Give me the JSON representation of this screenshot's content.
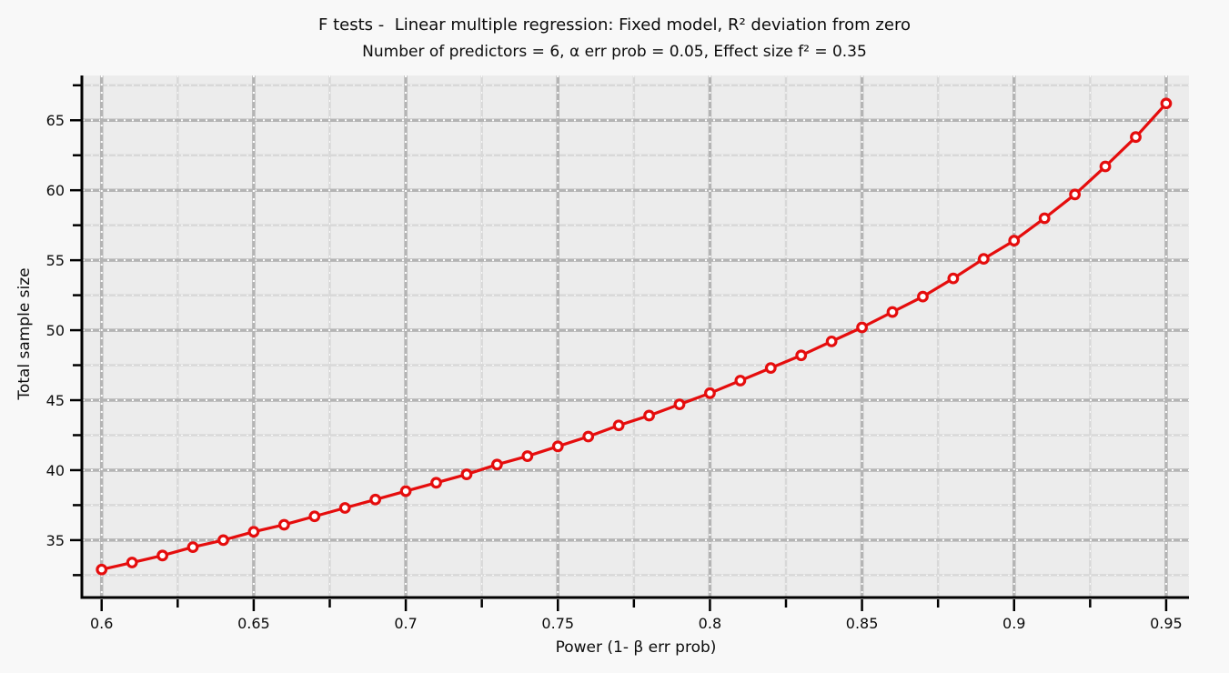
{
  "header": {
    "title": "F tests -  Linear multiple regression: Fixed model, R² deviation from zero",
    "subtitle": "Number of predictors = 6, α err prob = 0.05, Effect size f² = 0.35"
  },
  "chart_data": {
    "type": "line",
    "title": "F tests -  Linear multiple regression: Fixed model, R² deviation from zero",
    "subtitle": "Number of predictors = 6, α err prob = 0.05, Effect size f² = 0.35",
    "xlabel": "Power (1- β err prob)",
    "ylabel": "Total sample size",
    "x": [
      0.6,
      0.61,
      0.62,
      0.63,
      0.64,
      0.65,
      0.66,
      0.67,
      0.68,
      0.69,
      0.7,
      0.71,
      0.72,
      0.73,
      0.74,
      0.75,
      0.76,
      0.77,
      0.78,
      0.79,
      0.8,
      0.81,
      0.82,
      0.83,
      0.84,
      0.85,
      0.86,
      0.87,
      0.88,
      0.89,
      0.9,
      0.91,
      0.92,
      0.93,
      0.94,
      0.95
    ],
    "series": [
      {
        "name": "Total sample size",
        "marker": "open-circle",
        "values": [
          32.9,
          33.4,
          33.9,
          34.5,
          35.0,
          35.6,
          36.1,
          36.7,
          37.3,
          37.9,
          38.5,
          39.1,
          39.7,
          40.4,
          41.0,
          41.7,
          42.4,
          43.2,
          43.9,
          44.7,
          45.5,
          46.4,
          47.3,
          48.2,
          49.2,
          50.2,
          51.3,
          52.4,
          53.7,
          55.1,
          56.4,
          58.0,
          59.7,
          61.7,
          63.8,
          66.2
        ]
      }
    ],
    "xlim": [
      0.5938,
      0.9575
    ],
    "ylim": [
      30.9,
      68.2
    ],
    "x_ticks": {
      "major": [
        0.6,
        0.65,
        0.7,
        0.75,
        0.8,
        0.85,
        0.9,
        0.95
      ],
      "labels": [
        "0.6",
        "0.65",
        "0.7",
        "0.75",
        "0.8",
        "0.85",
        "0.9",
        "0.95"
      ],
      "minor": [
        0.625,
        0.675,
        0.725,
        0.775,
        0.825,
        0.875,
        0.925
      ]
    },
    "y_ticks": {
      "major": [
        35,
        40,
        45,
        50,
        55,
        60,
        65
      ],
      "labels": [
        "35",
        "40",
        "45",
        "50",
        "55",
        "60",
        "65"
      ],
      "minor": [
        32.5,
        37.5,
        42.5,
        47.5,
        52.5,
        57.5,
        62.5,
        67.5
      ]
    },
    "grid": "on",
    "legend": "none",
    "colors": {
      "page_bg": "#f8f8f8",
      "plot_bg": "#ececec",
      "grid_major": "#b4b4b4",
      "grid_minor": "#d8d8d8",
      "grid_dash": "#ffffff",
      "axis": "#000000",
      "line": "#e50d0d",
      "marker_fill": "#ffffff",
      "text": "#0b0b0b"
    }
  }
}
